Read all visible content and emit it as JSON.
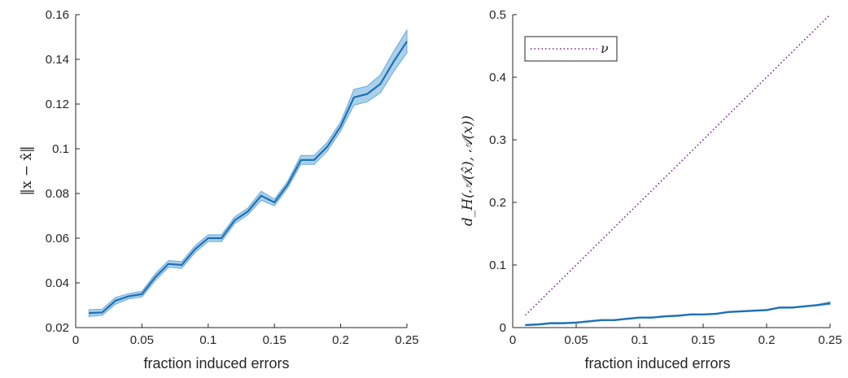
{
  "chart_data": [
    {
      "type": "line",
      "xlabel": "fraction induced errors",
      "ylabel": "‖x − x̂‖",
      "xlim": [
        0,
        0.25
      ],
      "ylim": [
        0.02,
        0.16
      ],
      "xticks": [
        "0",
        "0.05",
        "0.1",
        "0.15",
        "0.2",
        "0.25"
      ],
      "xtick_values": [
        0,
        0.05,
        0.1,
        0.15,
        0.2,
        0.25
      ],
      "yticks": [
        "0.02",
        "0.04",
        "0.06",
        "0.08",
        "0.1",
        "0.12",
        "0.14",
        "0.16"
      ],
      "ytick_values": [
        0.02,
        0.04,
        0.06,
        0.08,
        0.1,
        0.12,
        0.14,
        0.16
      ],
      "grid": false,
      "series": [
        {
          "color": "#1f6fb5",
          "band_color": "#8ec1e6",
          "x": [
            0.01,
            0.02,
            0.03,
            0.04,
            0.05,
            0.06,
            0.07,
            0.08,
            0.09,
            0.1,
            0.11,
            0.12,
            0.13,
            0.14,
            0.15,
            0.16,
            0.17,
            0.18,
            0.19,
            0.2,
            0.21,
            0.22,
            0.23,
            0.24,
            0.25
          ],
          "y": [
            0.0265,
            0.0268,
            0.032,
            0.034,
            0.035,
            0.0425,
            0.0485,
            0.048,
            0.055,
            0.06,
            0.06,
            0.068,
            0.072,
            0.079,
            0.076,
            0.084,
            0.095,
            0.095,
            0.101,
            0.11,
            0.123,
            0.1245,
            0.129,
            0.139,
            0.148
          ],
          "y_lower": [
            0.025,
            0.0255,
            0.0305,
            0.0328,
            0.0338,
            0.041,
            0.047,
            0.0465,
            0.0535,
            0.0585,
            0.0585,
            0.0665,
            0.0705,
            0.077,
            0.0745,
            0.0825,
            0.093,
            0.093,
            0.099,
            0.108,
            0.1195,
            0.121,
            0.125,
            0.1345,
            0.143
          ],
          "y_upper": [
            0.028,
            0.0282,
            0.0335,
            0.0352,
            0.0362,
            0.044,
            0.05,
            0.0495,
            0.0565,
            0.0615,
            0.0615,
            0.0695,
            0.0735,
            0.081,
            0.0775,
            0.0855,
            0.097,
            0.097,
            0.103,
            0.112,
            0.1265,
            0.128,
            0.133,
            0.1435,
            0.153
          ]
        }
      ]
    },
    {
      "type": "line",
      "xlabel": "fraction induced errors",
      "ylabel": "d_H(𝒜(x̂), 𝒜(x))",
      "xlim": [
        0,
        0.25
      ],
      "ylim": [
        0,
        0.5
      ],
      "xticks": [
        "0",
        "0.05",
        "0.1",
        "0.15",
        "0.2",
        "0.25"
      ],
      "xtick_values": [
        0,
        0.05,
        0.1,
        0.15,
        0.2,
        0.25
      ],
      "yticks": [
        "0",
        "0.1",
        "0.2",
        "0.3",
        "0.4",
        "0.5"
      ],
      "ytick_values": [
        0,
        0.1,
        0.2,
        0.3,
        0.4,
        0.5
      ],
      "grid": false,
      "legend": {
        "placement": "top-left",
        "entries": [
          "ν"
        ]
      },
      "series": [
        {
          "color": "#1f6fb5",
          "band_color": "#8ec1e6",
          "x": [
            0.01,
            0.02,
            0.03,
            0.04,
            0.05,
            0.06,
            0.07,
            0.08,
            0.09,
            0.1,
            0.11,
            0.12,
            0.13,
            0.14,
            0.15,
            0.16,
            0.17,
            0.18,
            0.19,
            0.2,
            0.21,
            0.22,
            0.23,
            0.24,
            0.25
          ],
          "y": [
            0.004,
            0.005,
            0.007,
            0.007,
            0.008,
            0.01,
            0.012,
            0.012,
            0.014,
            0.016,
            0.016,
            0.018,
            0.019,
            0.021,
            0.021,
            0.022,
            0.025,
            0.026,
            0.027,
            0.028,
            0.032,
            0.032,
            0.034,
            0.036,
            0.039
          ],
          "y_lower": [
            0.003,
            0.004,
            0.006,
            0.006,
            0.007,
            0.009,
            0.011,
            0.011,
            0.013,
            0.015,
            0.015,
            0.017,
            0.018,
            0.02,
            0.02,
            0.021,
            0.024,
            0.025,
            0.026,
            0.027,
            0.031,
            0.031,
            0.033,
            0.035,
            0.037
          ],
          "y_upper": [
            0.005,
            0.006,
            0.008,
            0.008,
            0.009,
            0.011,
            0.013,
            0.013,
            0.015,
            0.017,
            0.017,
            0.019,
            0.02,
            0.022,
            0.022,
            0.023,
            0.026,
            0.027,
            0.028,
            0.029,
            0.033,
            0.033,
            0.035,
            0.037,
            0.041
          ]
        },
        {
          "name": "ν",
          "color": "#7a1f8a",
          "style": "dotted",
          "x": [
            0.01,
            0.25
          ],
          "y": [
            0.02,
            0.5
          ]
        }
      ]
    }
  ]
}
